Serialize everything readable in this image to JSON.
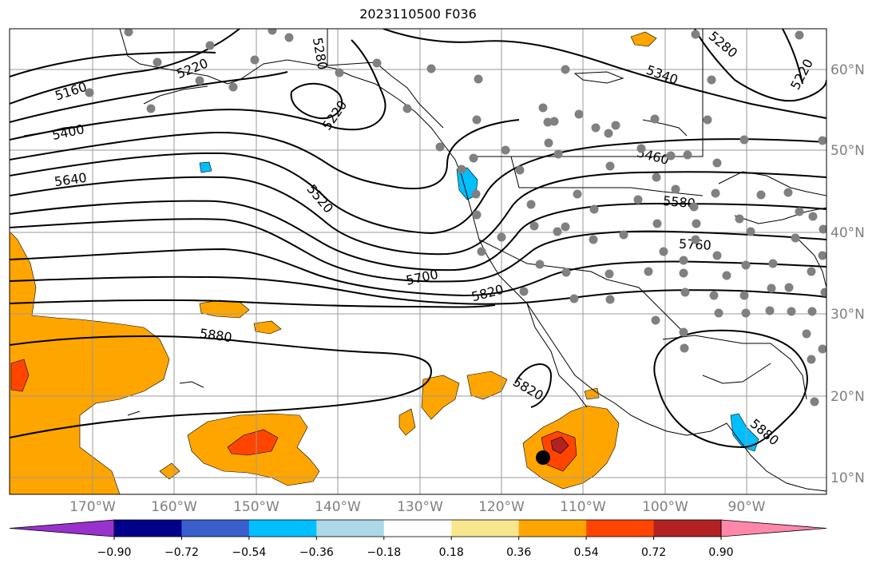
{
  "title": "2023110500 F036",
  "map": {
    "lat_ticks": [
      "60°N",
      "50°N",
      "40°N",
      "30°N",
      "20°N",
      "10°N"
    ],
    "lon_ticks": [
      "170°W",
      "160°W",
      "150°W",
      "140°W",
      "130°W",
      "120°W",
      "110°W",
      "100°W",
      "90°W"
    ],
    "contour_labels": [
      "5160",
      "5220",
      "5280",
      "5220",
      "5400",
      "5640",
      "5520",
      "5700",
      "5820",
      "5880",
      "5820",
      "5280",
      "5220",
      "5340",
      "5460",
      "5580",
      "5760",
      "5880"
    ],
    "shading_colors": {
      "light_orange": "#FFA500",
      "red_orange": "#FF4500",
      "dark_red": "#B22222",
      "blue": "#00BFFF",
      "light_blue": "#ADD8E6",
      "black_marker": "#000000",
      "station_gray": "#808080"
    }
  },
  "colorbar": {
    "ticks": [
      "−0.90",
      "−0.72",
      "−0.54",
      "−0.36",
      "−0.18",
      "0.18",
      "0.36",
      "0.54",
      "0.72",
      "0.90"
    ],
    "colors": [
      "#9932CC",
      "#00008B",
      "#3A5FCD",
      "#00BFFF",
      "#ADD8E6",
      "#FFFFFF",
      "#F8E68C",
      "#FFA500",
      "#FF4500",
      "#B22222",
      "#FF88AA"
    ]
  }
}
